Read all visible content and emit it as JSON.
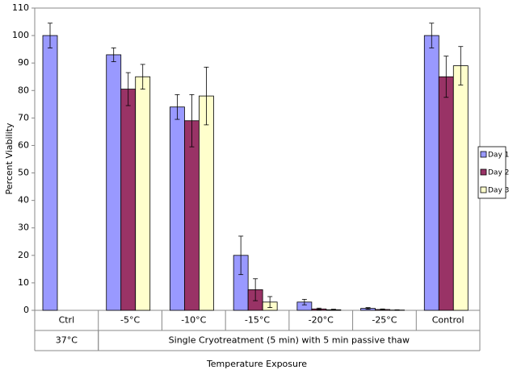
{
  "chart_data": {
    "type": "bar",
    "y_label": "Percent Viability",
    "x_label": "Temperature Exposure",
    "categories": [
      "Ctrl",
      "-5°C",
      "-10°C",
      "-15°C",
      "-20°C",
      "-25°C",
      "Control"
    ],
    "category_groups": [
      "37°C",
      "Single Cryotreatment (5 min) with 5 min passive thaw"
    ],
    "series": [
      {
        "name": "Day 1",
        "color": "#9999ff",
        "values": [
          100,
          93,
          74,
          20,
          3,
          0.7,
          100
        ],
        "errors": [
          4.5,
          2.5,
          4.5,
          7,
          1,
          0.3,
          4.5
        ]
      },
      {
        "name": "Day 2",
        "color": "#993366",
        "values": [
          null,
          80.5,
          69,
          7.5,
          0.5,
          0.3,
          85
        ],
        "errors": [
          null,
          6,
          9.5,
          4,
          0.3,
          0.2,
          7.5
        ]
      },
      {
        "name": "Day 3",
        "color": "#ffffcc",
        "values": [
          null,
          85,
          78,
          3,
          0.2,
          0.1,
          89
        ],
        "errors": [
          null,
          4.5,
          10.5,
          2,
          0.2,
          0.1,
          7
        ]
      }
    ],
    "ylim": [
      0,
      110
    ],
    "yticks": [
      0,
      10,
      20,
      30,
      40,
      50,
      60,
      70,
      80,
      90,
      100,
      110
    ],
    "grid": false,
    "legend": "right"
  }
}
